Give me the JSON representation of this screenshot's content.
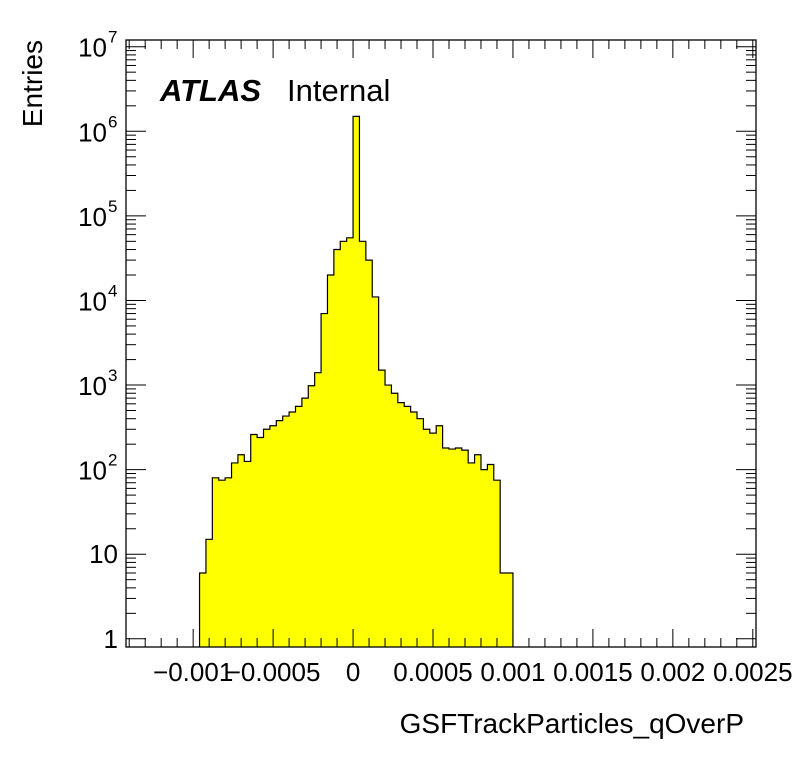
{
  "chart_data": {
    "type": "bar",
    "title": "",
    "xlabel": "GSFTrackParticles_qOverP",
    "ylabel": "Entries",
    "log_y": true,
    "xlim": [
      -0.00142,
      0.00252
    ],
    "ylim": [
      0.8,
      12000000
    ],
    "fill_color": "#ffff00",
    "edge_color": "#000000",
    "grid": false,
    "atlas_label": "ATLAS",
    "atlas_sublabel": "Internal",
    "x_ticks": [
      {
        "value": -0.001,
        "label": "−0.001"
      },
      {
        "value": -0.0005,
        "label": "−0.0005"
      },
      {
        "value": 0,
        "label": "0"
      },
      {
        "value": 0.0005,
        "label": "0.0005"
      },
      {
        "value": 0.001,
        "label": "0.001"
      },
      {
        "value": 0.0015,
        "label": "0.0015"
      },
      {
        "value": 0.002,
        "label": "0.002"
      },
      {
        "value": 0.0025,
        "label": "0.0025"
      }
    ],
    "y_ticks": [
      {
        "value": 1,
        "base": "1",
        "exp": ""
      },
      {
        "value": 10,
        "base": "10",
        "exp": ""
      },
      {
        "value": 100,
        "base": "10",
        "exp": "2"
      },
      {
        "value": 1000,
        "base": "10",
        "exp": "3"
      },
      {
        "value": 10000,
        "base": "10",
        "exp": "4"
      },
      {
        "value": 100000,
        "base": "10",
        "exp": "5"
      },
      {
        "value": 1000000,
        "base": "10",
        "exp": "6"
      },
      {
        "value": 10000000,
        "base": "10",
        "exp": "7"
      }
    ],
    "bin_width": 4e-05,
    "bin_low_edges": [
      -0.00096,
      -0.00092,
      -0.00088,
      -0.00084,
      -0.0008,
      -0.00076,
      -0.00072,
      -0.00068,
      -0.00064,
      -0.0006,
      -0.00056,
      -0.00052,
      -0.00048,
      -0.00044,
      -0.0004,
      -0.00036,
      -0.00032,
      -0.00028,
      -0.00024,
      -0.0002,
      -0.00016,
      -0.00012,
      -8e-05,
      -4e-05,
      0,
      4e-05,
      8e-05,
      0.00012,
      0.00016,
      0.0002,
      0.00024,
      0.00028,
      0.00032,
      0.00036,
      0.0004,
      0.00044,
      0.00048,
      0.00052,
      0.00056,
      0.0006,
      0.00064,
      0.00068,
      0.00072,
      0.00076,
      0.0008,
      0.00084,
      0.00088,
      0.00092,
      0.00096
    ],
    "values": [
      6,
      15,
      80,
      75,
      80,
      120,
      150,
      125,
      260,
      240,
      300,
      330,
      380,
      430,
      480,
      560,
      700,
      980,
      1400,
      7000,
      20000,
      40000,
      50000,
      55000,
      1500000,
      50000,
      30000,
      11000,
      1500,
      1000,
      800,
      620,
      560,
      480,
      400,
      300,
      270,
      330,
      180,
      175,
      180,
      170,
      120,
      150,
      100,
      115,
      75,
      6,
      6
    ]
  }
}
